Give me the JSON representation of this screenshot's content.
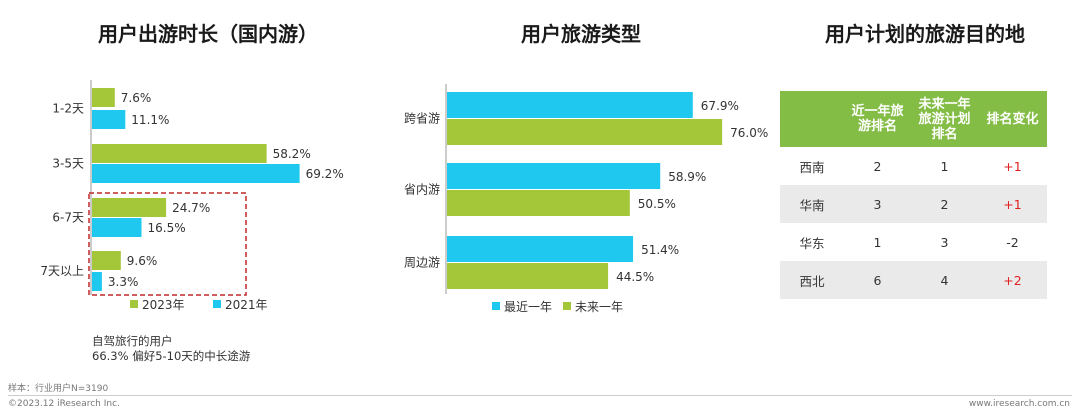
{
  "titles": {
    "duration": "用户出游时长（国内游）",
    "type": "用户旅游类型",
    "destination": "用户计划的旅游目的地"
  },
  "colors": {
    "green": "#a4c639",
    "blue": "#1ec8ef",
    "red_dash": "#c0282d",
    "header_green": "#84bd46",
    "up_red": "#e02020"
  },
  "chart_data": [
    {
      "type": "bar",
      "orientation": "horizontal",
      "title": "用户出游时长（国内游）",
      "categories": [
        "1-2天",
        "3-5天",
        "6-7天",
        "7天以上"
      ],
      "series": [
        {
          "name": "2023年",
          "color": "#a4c639",
          "values": [
            7.6,
            58.2,
            24.7,
            9.6
          ],
          "labels": [
            "7.6%",
            "58.2%",
            "24.7%",
            "9.6%"
          ]
        },
        {
          "name": "2021年",
          "color": "#1ec8ef",
          "values": [
            11.1,
            69.2,
            16.5,
            3.3
          ],
          "labels": [
            "11.1%",
            "69.2%",
            "16.5%",
            "3.3%"
          ]
        }
      ],
      "xlim": [
        0,
        100
      ],
      "legend": "bottom",
      "annotation": [
        "自驾旅行的用户",
        "66.3% 偏好5-10天的中长途游"
      ]
    },
    {
      "type": "bar",
      "orientation": "horizontal",
      "title": "用户旅游类型",
      "categories": [
        "跨省游",
        "省内游",
        "周边游"
      ],
      "series": [
        {
          "name": "最近一年",
          "color": "#1ec8ef",
          "values": [
            67.9,
            58.9,
            51.4
          ],
          "labels": [
            "67.9%",
            "58.9%",
            "51.4%"
          ]
        },
        {
          "name": "未来一年",
          "color": "#a4c639",
          "values": [
            76.0,
            50.5,
            44.5
          ],
          "labels": [
            "76.0%",
            "50.5%",
            "44.5%"
          ]
        }
      ],
      "xlim": [
        0,
        100
      ],
      "legend": "bottom"
    },
    {
      "type": "table",
      "title": "用户计划的旅游目的地",
      "columns": [
        "",
        "近一年旅游排名",
        "未来一年旅游计划排名",
        "排名变化"
      ],
      "rows": [
        [
          "西南",
          "2",
          "1",
          "+1"
        ],
        [
          "华南",
          "3",
          "2",
          "+1"
        ],
        [
          "华东",
          "1",
          "3",
          "-2"
        ],
        [
          "西北",
          "6",
          "4",
          "+2"
        ]
      ]
    }
  ],
  "table_header_lines": [
    [
      "近一年旅",
      "游排名"
    ],
    [
      "未来一年",
      "旅游计划",
      "排名"
    ],
    [
      "排名变化"
    ]
  ],
  "footer": {
    "sample": "样本：行业用户N=3190",
    "copyright": "©2023.12 iResearch Inc.",
    "website": "www.iresearch.com.cn"
  }
}
